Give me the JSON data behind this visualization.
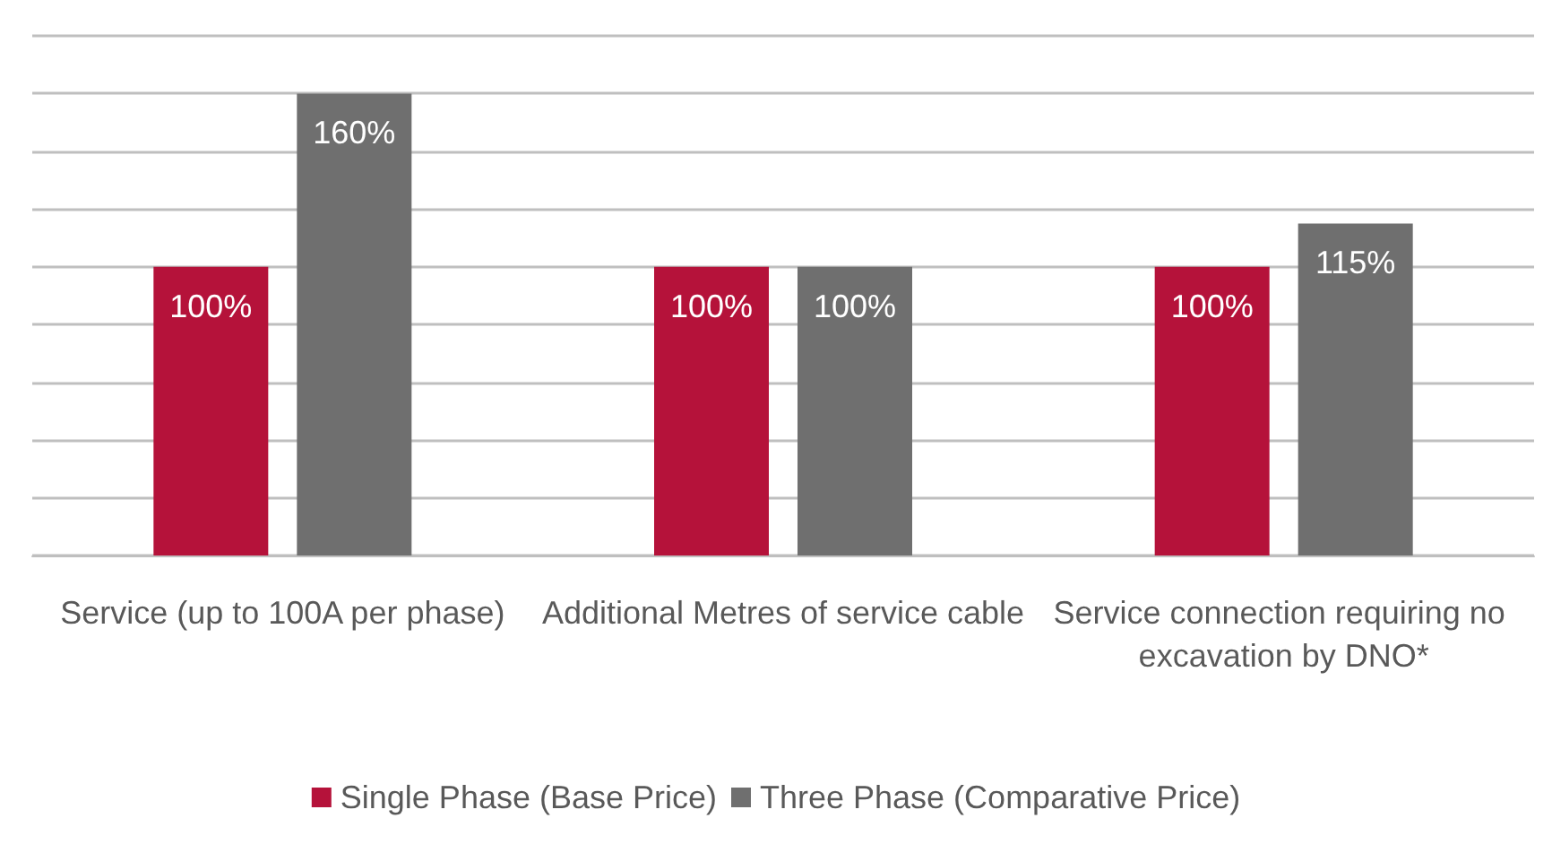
{
  "chart_data": {
    "type": "bar",
    "categories": [
      "Service (up to 100A per phase)",
      "Additional Metres of service cable",
      "Service connection requiring no excavation by DNO*"
    ],
    "series": [
      {
        "name": "Single Phase (Base Price)",
        "color": "#b5123a",
        "values": [
          100,
          100,
          100
        ],
        "value_labels": [
          "100%",
          "100%",
          "100%"
        ]
      },
      {
        "name": "Three Phase (Comparative Price)",
        "color": "#6f6f6f",
        "values": [
          160,
          100,
          115
        ],
        "value_labels": [
          "160%",
          "100%",
          "115%"
        ]
      }
    ],
    "ylim": [
      0,
      180
    ],
    "yticks": [
      {
        "value": 0,
        "label": null
      },
      {
        "value": 20,
        "label": null
      },
      {
        "value": 40,
        "label": null
      },
      {
        "value": 60,
        "label": null
      },
      {
        "value": 80,
        "label": null
      },
      {
        "value": 100,
        "label": null
      },
      {
        "value": 120,
        "label": null
      },
      {
        "value": 140,
        "label": null
      },
      {
        "value": 160,
        "label": null
      },
      {
        "value": 180,
        "label": null
      }
    ],
    "tick_labels": "x",
    "grid": "y",
    "legend": "bottom"
  }
}
